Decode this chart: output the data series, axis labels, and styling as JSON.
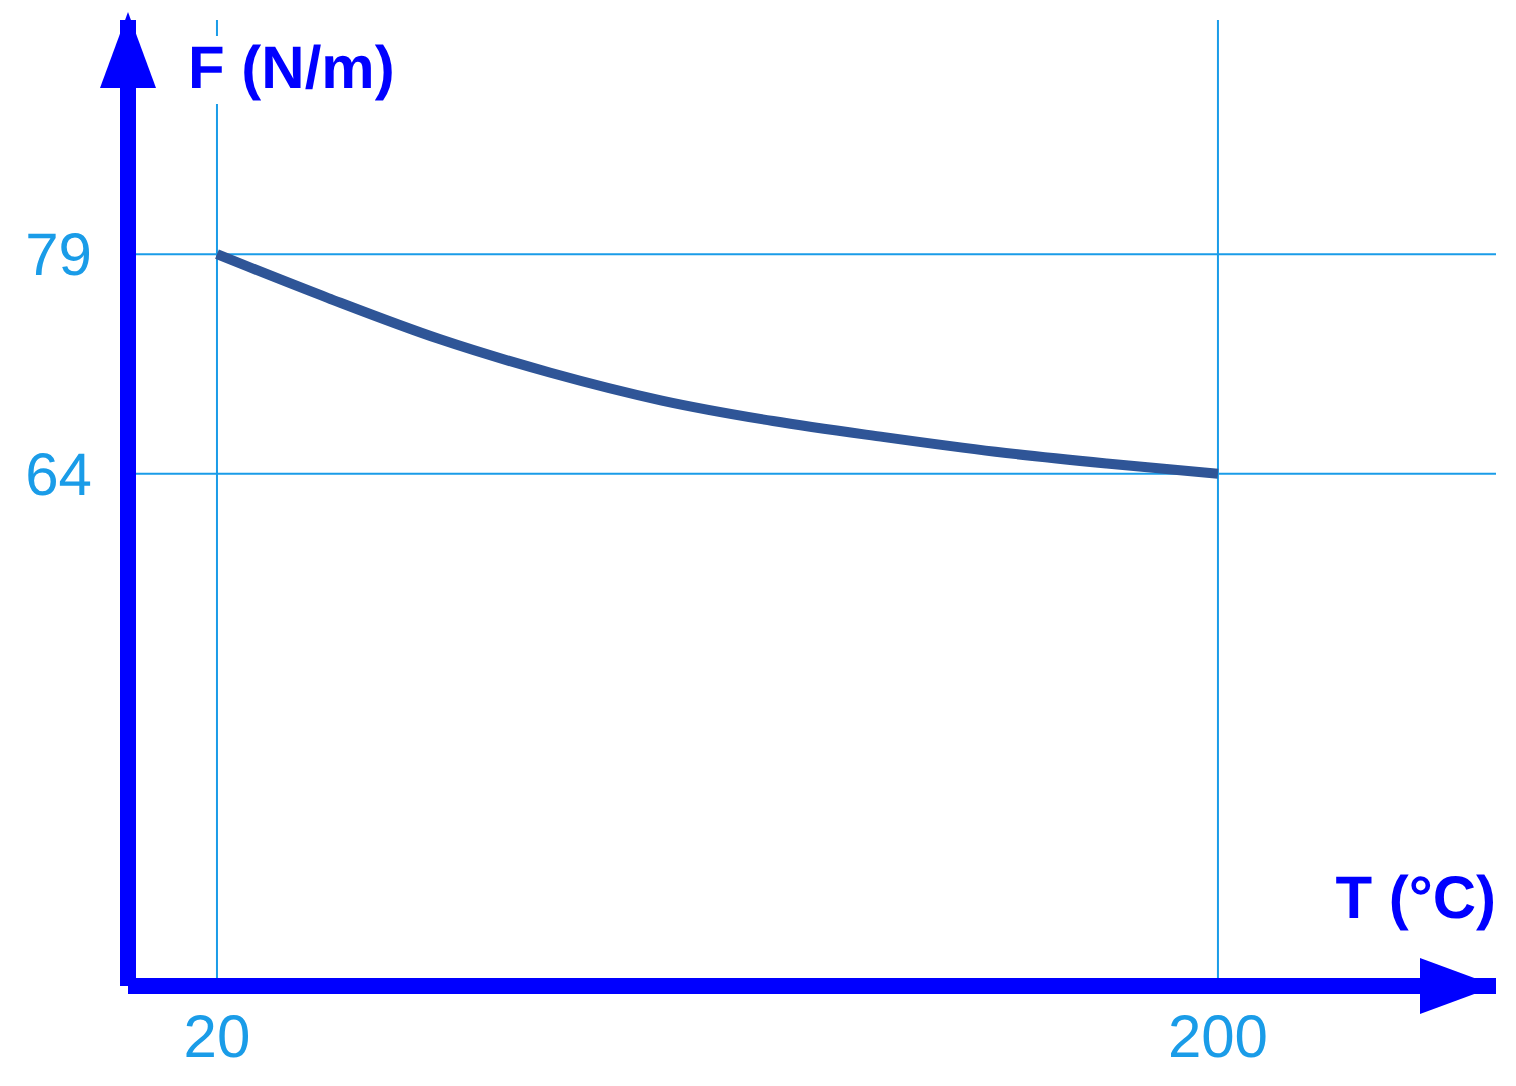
{
  "chart_data": {
    "type": "line",
    "xlabel": "T (°C)",
    "ylabel": "F (N/m)",
    "x": [
      20,
      40,
      60,
      80,
      100,
      120,
      140,
      160,
      180,
      200
    ],
    "series": [
      {
        "color": "#2f5597",
        "values": [
          79,
          76,
          73.2,
          70.9,
          69,
          67.6,
          66.5,
          65.5,
          64.7,
          64
        ]
      }
    ],
    "xlim": [
      4,
      250
    ],
    "xticks": [
      20,
      200
    ],
    "ylim": [
      29,
      95
    ],
    "yticks": [
      79,
      64
    ],
    "grid": true
  }
}
